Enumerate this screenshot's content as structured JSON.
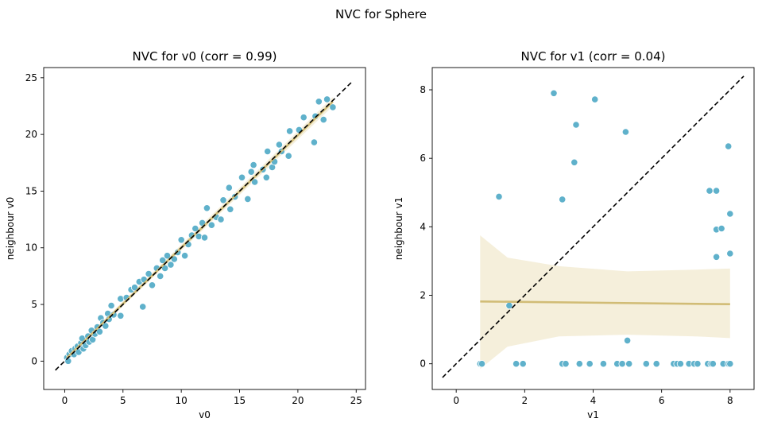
{
  "suptitle": "NVC for Sphere",
  "colors": {
    "points": "#5fb1cb",
    "regression": "#d1bc76",
    "band": "#efe6c8",
    "identity": "#000000"
  },
  "chart_data": [
    {
      "type": "scatter",
      "title": "NVC for v0 (corr = 0.99)",
      "xlabel": "v0",
      "ylabel": "neighbour v0",
      "xlim": [
        -1.8,
        25.8
      ],
      "ylim": [
        -2.5,
        25.9
      ],
      "xticks": [
        0,
        5,
        10,
        15,
        20,
        25
      ],
      "yticks": [
        0,
        5,
        10,
        15,
        20,
        25
      ],
      "identity_line": [
        -0.8,
        24.7
      ],
      "regression": {
        "x": [
          0.2,
          23.0
        ],
        "y": [
          0.3,
          22.9
        ],
        "band": [
          [
            0.2,
            0.15,
            0.45
          ],
          [
            23.0,
            22.5,
            23.3
          ]
        ]
      },
      "points": [
        [
          0.2,
          0.3
        ],
        [
          0.3,
          0.0
        ],
        [
          0.4,
          0.6
        ],
        [
          0.6,
          0.9
        ],
        [
          0.8,
          0.6
        ],
        [
          0.9,
          1.1
        ],
        [
          1.1,
          1.3
        ],
        [
          1.2,
          0.8
        ],
        [
          1.4,
          1.6
        ],
        [
          1.5,
          2.0
        ],
        [
          1.6,
          1.1
        ],
        [
          1.8,
          1.4
        ],
        [
          2.0,
          2.2
        ],
        [
          2.1,
          1.7
        ],
        [
          2.3,
          2.7
        ],
        [
          2.4,
          1.9
        ],
        [
          2.6,
          2.4
        ],
        [
          2.8,
          3.0
        ],
        [
          3.0,
          2.6
        ],
        [
          3.1,
          3.8
        ],
        [
          3.3,
          3.4
        ],
        [
          3.5,
          3.1
        ],
        [
          3.7,
          4.2
        ],
        [
          3.8,
          3.7
        ],
        [
          4.0,
          4.9
        ],
        [
          4.2,
          4.1
        ],
        [
          4.8,
          4.0
        ],
        [
          4.8,
          5.5
        ],
        [
          5.3,
          5.6
        ],
        [
          5.7,
          6.3
        ],
        [
          6.0,
          6.5
        ],
        [
          6.4,
          7.0
        ],
        [
          6.7,
          4.8
        ],
        [
          6.8,
          7.2
        ],
        [
          7.2,
          7.7
        ],
        [
          7.5,
          6.7
        ],
        [
          7.9,
          8.2
        ],
        [
          8.2,
          7.5
        ],
        [
          8.4,
          8.9
        ],
        [
          8.6,
          8.2
        ],
        [
          8.8,
          9.3
        ],
        [
          9.1,
          8.5
        ],
        [
          9.4,
          9.0
        ],
        [
          9.7,
          9.6
        ],
        [
          10.0,
          10.7
        ],
        [
          10.3,
          9.3
        ],
        [
          10.6,
          10.3
        ],
        [
          10.9,
          11.1
        ],
        [
          11.2,
          11.7
        ],
        [
          11.5,
          11.0
        ],
        [
          11.8,
          12.2
        ],
        [
          12.0,
          10.9
        ],
        [
          12.2,
          13.5
        ],
        [
          12.6,
          12.0
        ],
        [
          13.0,
          12.7
        ],
        [
          13.4,
          12.5
        ],
        [
          13.6,
          14.2
        ],
        [
          14.1,
          15.3
        ],
        [
          14.2,
          13.4
        ],
        [
          14.6,
          14.5
        ],
        [
          15.2,
          16.2
        ],
        [
          15.7,
          14.3
        ],
        [
          16.0,
          16.7
        ],
        [
          16.2,
          17.3
        ],
        [
          16.3,
          15.8
        ],
        [
          17.0,
          16.9
        ],
        [
          17.3,
          16.2
        ],
        [
          17.4,
          18.5
        ],
        [
          17.8,
          17.1
        ],
        [
          18.0,
          17.6
        ],
        [
          18.4,
          19.1
        ],
        [
          18.6,
          18.5
        ],
        [
          19.2,
          18.1
        ],
        [
          19.3,
          20.3
        ],
        [
          20.1,
          20.4
        ],
        [
          20.5,
          21.5
        ],
        [
          21.4,
          19.3
        ],
        [
          21.5,
          21.6
        ],
        [
          21.8,
          22.9
        ],
        [
          22.2,
          21.3
        ],
        [
          22.5,
          23.1
        ],
        [
          23.0,
          22.4
        ]
      ]
    },
    {
      "type": "scatter",
      "title": "NVC for v1 (corr = 0.04)",
      "xlabel": "v1",
      "ylabel": "neighbour v1",
      "xlim": [
        -0.7,
        8.7
      ],
      "ylim": [
        -0.75,
        8.65
      ],
      "xticks": [
        0,
        2,
        4,
        6,
        8
      ],
      "yticks": [
        0,
        2,
        4,
        6,
        8
      ],
      "identity_line": [
        -0.4,
        8.4
      ],
      "regression": {
        "x": [
          0.7,
          8.0
        ],
        "y": [
          1.82,
          1.74
        ],
        "band": [
          [
            0.7,
            -0.15,
            3.75
          ],
          [
            1.5,
            0.5,
            3.1
          ],
          [
            3.0,
            0.8,
            2.85
          ],
          [
            5.0,
            0.85,
            2.7
          ],
          [
            7.0,
            0.8,
            2.75
          ],
          [
            8.0,
            0.75,
            2.78
          ]
        ]
      },
      "points": [
        [
          0.7,
          0.0
        ],
        [
          0.75,
          0.0
        ],
        [
          1.25,
          4.88
        ],
        [
          1.55,
          1.7
        ],
        [
          1.75,
          0.0
        ],
        [
          1.95,
          0.0
        ],
        [
          2.85,
          7.9
        ],
        [
          3.1,
          4.8
        ],
        [
          3.1,
          0.0
        ],
        [
          3.2,
          0.0
        ],
        [
          3.45,
          5.88
        ],
        [
          3.5,
          6.98
        ],
        [
          3.6,
          0.0
        ],
        [
          3.9,
          0.0
        ],
        [
          4.05,
          7.72
        ],
        [
          4.3,
          0.0
        ],
        [
          4.7,
          0.0
        ],
        [
          4.85,
          0.0
        ],
        [
          4.95,
          6.77
        ],
        [
          5.0,
          0.68
        ],
        [
          5.05,
          0.0
        ],
        [
          5.55,
          0.0
        ],
        [
          5.85,
          0.0
        ],
        [
          6.35,
          0.0
        ],
        [
          6.45,
          0.0
        ],
        [
          6.55,
          0.0
        ],
        [
          6.8,
          0.0
        ],
        [
          6.95,
          0.0
        ],
        [
          7.05,
          0.0
        ],
        [
          7.35,
          0.0
        ],
        [
          7.4,
          5.05
        ],
        [
          7.45,
          0.0
        ],
        [
          7.5,
          0.0
        ],
        [
          7.6,
          5.05
        ],
        [
          7.6,
          3.92
        ],
        [
          7.6,
          3.12
        ],
        [
          7.75,
          3.95
        ],
        [
          7.8,
          0.0
        ],
        [
          7.95,
          0.0
        ],
        [
          7.95,
          6.35
        ],
        [
          8.0,
          4.38
        ],
        [
          8.0,
          3.22
        ],
        [
          8.0,
          0.0
        ]
      ]
    }
  ]
}
